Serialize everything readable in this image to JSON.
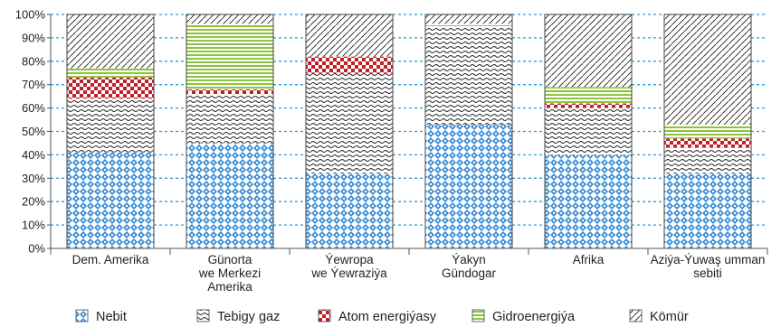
{
  "chart_data": {
    "type": "bar",
    "stacked": true,
    "orientation": "vertical",
    "y_unit": "%",
    "ylim": [
      0,
      100
    ],
    "yticks": [
      "0%",
      "10%",
      "20%",
      "30%",
      "40%",
      "50%",
      "60%",
      "70%",
      "80%",
      "90%",
      "100%"
    ],
    "grid": "horizontal dashed",
    "legend_position": "bottom",
    "categories": [
      [
        "Dem. Amerika"
      ],
      [
        "Günorta",
        "we Merkezi",
        "Amerika"
      ],
      [
        "Ýewropa",
        "we Ýewraziýa"
      ],
      [
        "Ýakyn",
        "Gündogar"
      ],
      [
        "Afrika"
      ],
      [
        "Aziýa-Ýuwaş umman",
        "sebiti"
      ]
    ],
    "series": [
      {
        "name": "Nebit",
        "pattern": "blue-diamond",
        "color": "#3c8fd6",
        "values": [
          41,
          45,
          32,
          53,
          40,
          32
        ]
      },
      {
        "name": "Tebigy gaz",
        "pattern": "wave",
        "color": "#222222",
        "values": [
          23,
          21,
          43,
          42,
          20,
          11
        ]
      },
      {
        "name": "Atom energiýasy",
        "pattern": "red-check",
        "color": "#c0202a",
        "values": [
          9,
          2,
          7,
          0,
          2,
          4
        ]
      },
      {
        "name": "Gidroenergiýa",
        "pattern": "green-horizontal",
        "color": "#8cc43c",
        "values": [
          4,
          28,
          0,
          1,
          7,
          6
        ]
      },
      {
        "name": "Kömür",
        "pattern": "diagonal",
        "color": "#222222",
        "values": [
          23,
          4,
          18,
          4,
          31,
          47
        ]
      }
    ]
  }
}
